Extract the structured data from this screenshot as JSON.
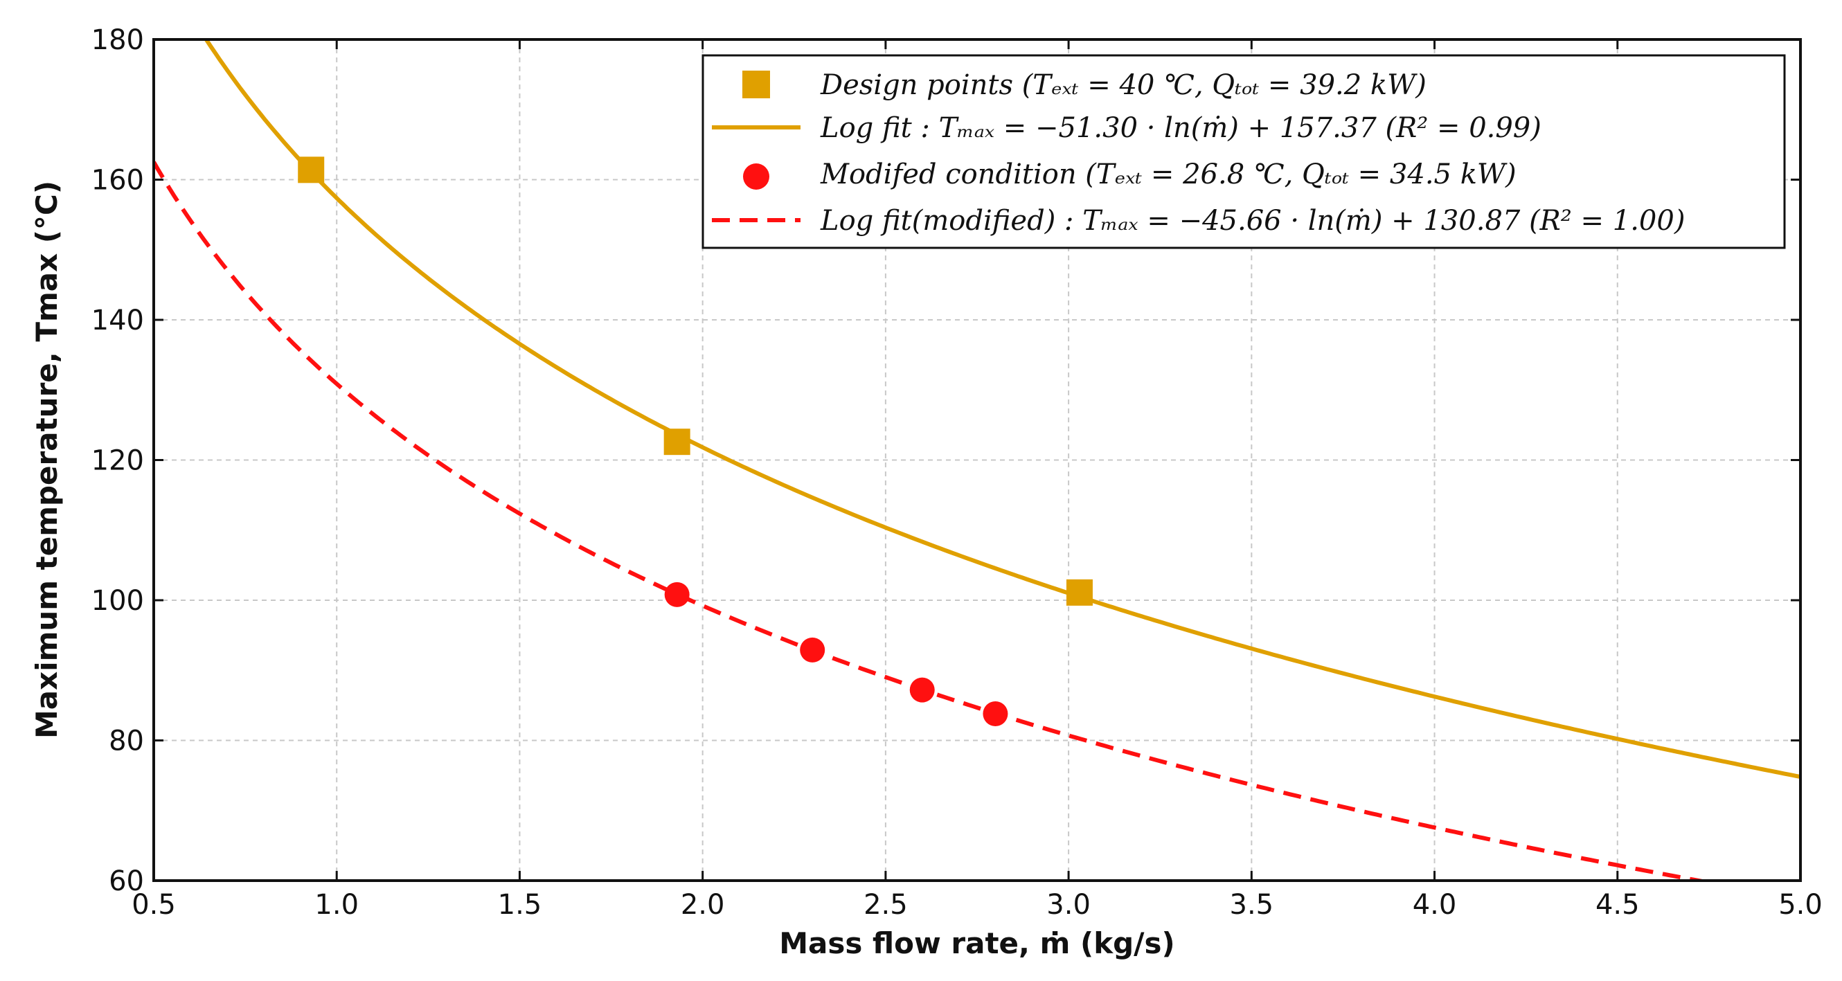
{
  "chart_data": {
    "type": "line",
    "title": "",
    "xlabel": "Mass flow rate, ṁ (kg/s)",
    "ylabel": "Maximum temperature, Tmax (°C)",
    "xlim": [
      0.5,
      5.0
    ],
    "ylim": [
      60,
      180
    ],
    "x_ticks": [
      "0.5",
      "1.0",
      "1.5",
      "2.0",
      "2.5",
      "3.0",
      "3.5",
      "4.0",
      "4.5",
      "5.0"
    ],
    "y_ticks": [
      "60",
      "80",
      "100",
      "120",
      "140",
      "160",
      "180"
    ],
    "grid": true,
    "legend_position": "top-right",
    "colors": {
      "design": "#E0A000",
      "modified": "#FF1010"
    },
    "series": [
      {
        "name": "Design points (Tₑₓₜ = 40 ℃, Qₜₒₜ = 39.2 kW)",
        "kind": "scatter",
        "marker": "square",
        "color": "#E0A000",
        "x": [
          0.93,
          1.93,
          3.03
        ],
        "y": [
          161.4,
          122.6,
          101.1
        ]
      },
      {
        "name": "Log fit : Tₘₐₓ = −51.30 · ln(ṁ) + 157.37 (R² = 0.99)",
        "kind": "fit",
        "style": "solid",
        "color": "#E0A000",
        "coef": -51.3,
        "intercept": 157.37
      },
      {
        "name": "Modifed condition (Tₑₓₜ = 26.8 ℃, Qₜₒₜ = 34.5 kW)",
        "kind": "scatter",
        "marker": "circle",
        "color": "#FF1010",
        "x": [
          1.93,
          2.3,
          2.6,
          2.8
        ],
        "y": [
          100.8,
          92.9,
          87.2,
          83.8
        ]
      },
      {
        "name": "Log fit(modified) : Tₘₐₓ = −45.66 · ln(ṁ) + 130.87 (R² = 1.00)",
        "kind": "fit",
        "style": "dashed",
        "color": "#FF1010",
        "coef": -45.66,
        "intercept": 130.87
      }
    ]
  }
}
